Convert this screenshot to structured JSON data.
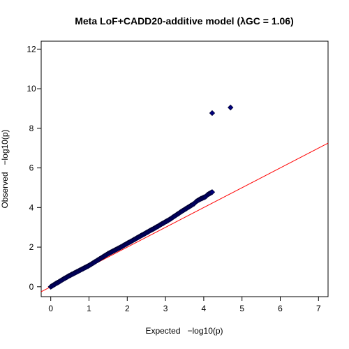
{
  "chart_data": {
    "type": "scatter",
    "title": "Meta LoF+CADD20-additive model (λGC = 1.06)",
    "xlabel": "Expected",
    "xlabel_math": "−log10(p)",
    "ylabel": "Observed",
    "ylabel_math": "−log10(p)",
    "xlim": [
      -0.25,
      7.25
    ],
    "ylim": [
      -0.5,
      12.4
    ],
    "xticks": [
      0,
      1,
      2,
      3,
      4,
      5,
      6,
      7
    ],
    "yticks": [
      0,
      2,
      4,
      6,
      8,
      10,
      12
    ],
    "grid": false,
    "reference_line": {
      "slope": 1,
      "intercept": 0,
      "color": "#ff0000"
    },
    "series": [
      {
        "marker": "diamond",
        "color": "#000080",
        "edge_color": "#000033",
        "points": [
          [
            0.0,
            0.0
          ],
          [
            0.05,
            0.06
          ],
          [
            0.1,
            0.12
          ],
          [
            0.15,
            0.18
          ],
          [
            0.2,
            0.23
          ],
          [
            0.25,
            0.29
          ],
          [
            0.3,
            0.35
          ],
          [
            0.35,
            0.41
          ],
          [
            0.4,
            0.46
          ],
          [
            0.45,
            0.52
          ],
          [
            0.5,
            0.57
          ],
          [
            0.55,
            0.62
          ],
          [
            0.6,
            0.67
          ],
          [
            0.65,
            0.72
          ],
          [
            0.7,
            0.77
          ],
          [
            0.75,
            0.82
          ],
          [
            0.8,
            0.87
          ],
          [
            0.85,
            0.92
          ],
          [
            0.9,
            0.97
          ],
          [
            0.95,
            1.02
          ],
          [
            1.0,
            1.07
          ],
          [
            1.05,
            1.13
          ],
          [
            1.1,
            1.19
          ],
          [
            1.15,
            1.25
          ],
          [
            1.2,
            1.31
          ],
          [
            1.25,
            1.37
          ],
          [
            1.3,
            1.43
          ],
          [
            1.35,
            1.49
          ],
          [
            1.4,
            1.55
          ],
          [
            1.45,
            1.61
          ],
          [
            1.5,
            1.67
          ],
          [
            1.55,
            1.72
          ],
          [
            1.6,
            1.77
          ],
          [
            1.65,
            1.82
          ],
          [
            1.7,
            1.87
          ],
          [
            1.75,
            1.92
          ],
          [
            1.8,
            1.97
          ],
          [
            1.85,
            2.02
          ],
          [
            1.9,
            2.08
          ],
          [
            1.95,
            2.13
          ],
          [
            2.0,
            2.19
          ],
          [
            2.05,
            2.24
          ],
          [
            2.1,
            2.29
          ],
          [
            2.15,
            2.35
          ],
          [
            2.2,
            2.4
          ],
          [
            2.25,
            2.46
          ],
          [
            2.3,
            2.51
          ],
          [
            2.35,
            2.57
          ],
          [
            2.4,
            2.62
          ],
          [
            2.45,
            2.67
          ],
          [
            2.5,
            2.73
          ],
          [
            2.55,
            2.78
          ],
          [
            2.6,
            2.84
          ],
          [
            2.65,
            2.89
          ],
          [
            2.7,
            2.94
          ],
          [
            2.75,
            3.0
          ],
          [
            2.8,
            3.05
          ],
          [
            2.85,
            3.11
          ],
          [
            2.9,
            3.17
          ],
          [
            2.95,
            3.22
          ],
          [
            3.0,
            3.28
          ],
          [
            3.05,
            3.33
          ],
          [
            3.1,
            3.39
          ],
          [
            3.15,
            3.45
          ],
          [
            3.2,
            3.52
          ],
          [
            3.25,
            3.58
          ],
          [
            3.3,
            3.65
          ],
          [
            3.35,
            3.71
          ],
          [
            3.4,
            3.78
          ],
          [
            3.45,
            3.84
          ],
          [
            3.5,
            3.9
          ],
          [
            3.55,
            3.96
          ],
          [
            3.6,
            4.02
          ],
          [
            3.65,
            4.08
          ],
          [
            3.7,
            4.14
          ],
          [
            3.75,
            4.2
          ],
          [
            3.8,
            4.3
          ],
          [
            3.9,
            4.42
          ],
          [
            4.05,
            4.55
          ],
          [
            4.1,
            4.65
          ],
          [
            4.22,
            4.78
          ],
          [
            4.22,
            8.77
          ],
          [
            4.7,
            9.05
          ]
        ]
      }
    ]
  }
}
